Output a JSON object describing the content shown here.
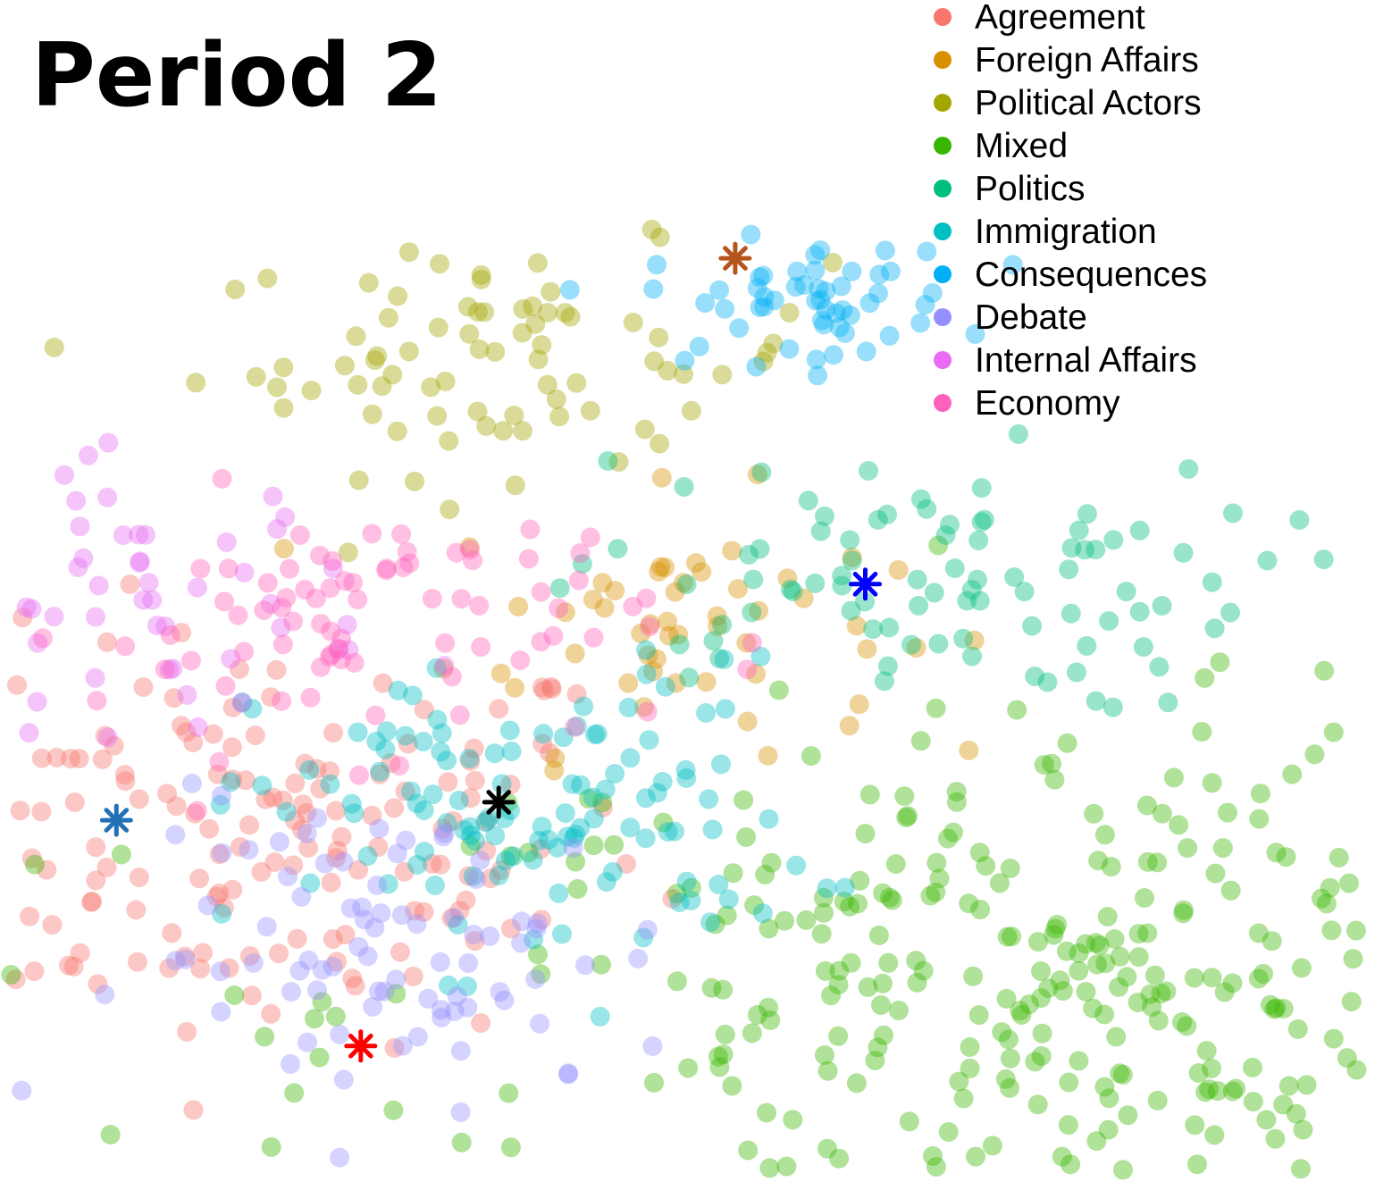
{
  "chart_data": {
    "type": "scatter",
    "title": "Period 2",
    "xlabel": "",
    "ylabel": "",
    "grid": false,
    "axes_visible": false,
    "legend_position": "top-right",
    "point_alpha": 0.4,
    "series": [
      {
        "name": "Agreement",
        "color": "#F8766D",
        "centroid": [
          -110,
          65
        ],
        "spread": [
          50,
          40
        ],
        "n": 170
      },
      {
        "name": "Foreign Affairs",
        "color": "#D89000",
        "centroid": [
          -5,
          150
        ],
        "spread": [
          28,
          25
        ],
        "n": 55
      },
      {
        "name": "Political Actors",
        "color": "#A3A500",
        "centroid": [
          -45,
          252
        ],
        "spread": [
          40,
          22
        ],
        "n": 80
      },
      {
        "name": "Mixed",
        "color": "#39B600",
        "centroid": [
          105,
          0
        ],
        "spread": [
          95,
          55
        ],
        "n": 420
      },
      {
        "name": "Politics",
        "color": "#00BF7D",
        "centroid": [
          55,
          165
        ],
        "spread": [
          45,
          25
        ],
        "n": 90
      },
      {
        "name": "Immigration",
        "color": "#00BFC4",
        "centroid": [
          -40,
          75
        ],
        "spread": [
          35,
          30
        ],
        "n": 120
      },
      {
        "name": "Consequences",
        "color": "#00B0F6",
        "centroid": [
          30,
          275
        ],
        "spread": [
          20,
          12
        ],
        "n": 55
      },
      {
        "name": "Debate",
        "color": "#9590FF",
        "centroid": [
          -70,
          20
        ],
        "spread": [
          35,
          30
        ],
        "n": 85
      },
      {
        "name": "Internal Affairs",
        "color": "#E76BF3",
        "centroid": [
          -140,
          160
        ],
        "spread": [
          30,
          25
        ],
        "n": 55
      },
      {
        "name": "Economy",
        "color": "#FF62BC",
        "centroid": [
          -80,
          150
        ],
        "spread": [
          35,
          25
        ],
        "n": 80
      }
    ],
    "highlight_markers": [
      {
        "shape": "asterisk",
        "color": "#B5541C",
        "x": 12,
        "y": 292
      },
      {
        "shape": "asterisk",
        "color": "#0000FF",
        "x": 45,
        "y": 165
      },
      {
        "shape": "asterisk",
        "color": "#000000",
        "x": -48,
        "y": 80
      },
      {
        "shape": "asterisk",
        "color": "#2470B4",
        "x": -145,
        "y": 73
      },
      {
        "shape": "asterisk",
        "color": "#FF0000",
        "x": -83,
        "y": -15
      }
    ],
    "xlim": [
      -170,
      170
    ],
    "ylim": [
      -60,
      330
    ]
  }
}
